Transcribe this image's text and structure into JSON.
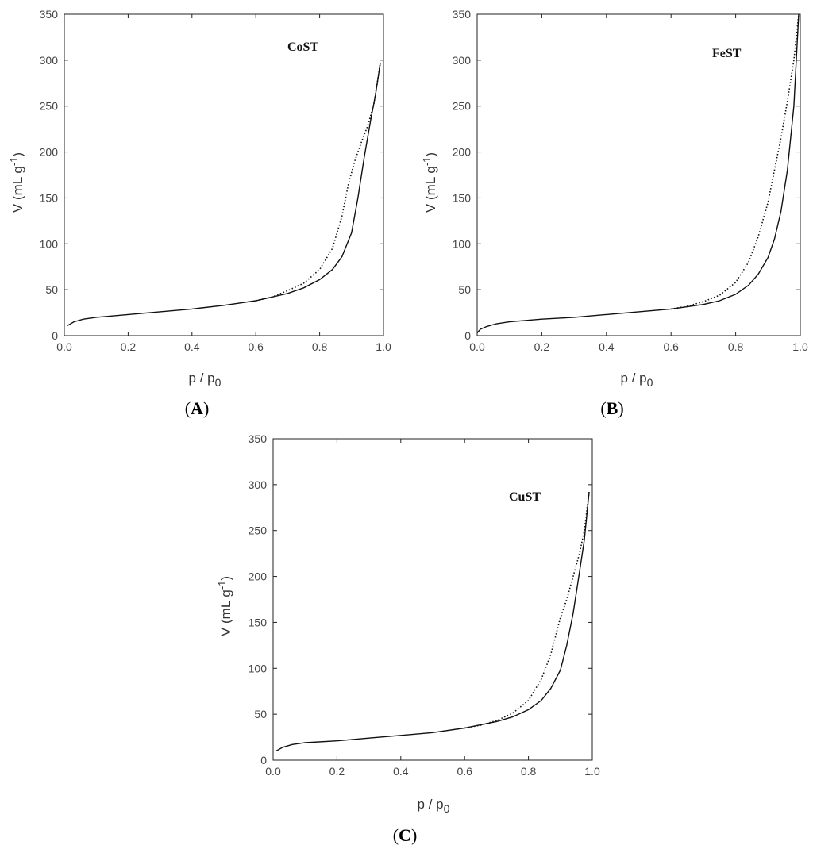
{
  "chart_data": [
    {
      "type": "line",
      "panel_label": "A",
      "title": "CoST",
      "xlabel_main": "p / p",
      "xlabel_sub": "0",
      "ylabel_main": "V (mL g",
      "ylabel_sup": "-1",
      "ylabel_close": ")",
      "xlim": [
        0,
        1.0
      ],
      "ylim": [
        0,
        350
      ],
      "xticks": [
        "0.0",
        "0.2",
        "0.4",
        "0.6",
        "0.8",
        "1.0"
      ],
      "yticks": [
        "0",
        "50",
        "100",
        "150",
        "200",
        "250",
        "300",
        "350"
      ],
      "series": [
        {
          "style": "solid",
          "x": [
            0.01,
            0.03,
            0.06,
            0.1,
            0.2,
            0.3,
            0.4,
            0.5,
            0.6,
            0.7,
            0.75,
            0.8,
            0.84,
            0.87,
            0.9,
            0.92,
            0.94,
            0.96,
            0.975,
            0.99
          ],
          "y": [
            11,
            15,
            18,
            20,
            23,
            26,
            29,
            33,
            38,
            46,
            52,
            61,
            72,
            86,
            112,
            150,
            195,
            235,
            262,
            297
          ]
        },
        {
          "style": "dotted",
          "x": [
            0.6,
            0.65,
            0.7,
            0.75,
            0.8,
            0.84,
            0.87,
            0.89,
            0.91,
            0.93,
            0.95,
            0.97,
            0.99
          ],
          "y": [
            38,
            42,
            49,
            57,
            72,
            95,
            130,
            165,
            190,
            210,
            228,
            252,
            297
          ]
        }
      ]
    },
    {
      "type": "line",
      "panel_label": "B",
      "title": "FeST",
      "xlabel_main": "p / p",
      "xlabel_sub": "0",
      "ylabel_main": "V (mL g",
      "ylabel_sup": "-1",
      "ylabel_close": ")",
      "xlim": [
        0,
        1.0
      ],
      "ylim": [
        0,
        350
      ],
      "xticks": [
        "0.0",
        "0.2",
        "0.4",
        "0.6",
        "0.8",
        "1.0"
      ],
      "yticks": [
        "0",
        "50",
        "100",
        "150",
        "200",
        "250",
        "300",
        "350"
      ],
      "series": [
        {
          "style": "solid",
          "x": [
            0.0,
            0.01,
            0.03,
            0.06,
            0.1,
            0.2,
            0.3,
            0.4,
            0.5,
            0.6,
            0.7,
            0.75,
            0.8,
            0.84,
            0.87,
            0.9,
            0.92,
            0.94,
            0.96,
            0.98,
            0.995
          ],
          "y": [
            3,
            7,
            10,
            13,
            15,
            18,
            20,
            23,
            26,
            29,
            34,
            38,
            45,
            55,
            67,
            85,
            105,
            135,
            180,
            250,
            350
          ]
        },
        {
          "style": "dotted",
          "x": [
            0.6,
            0.65,
            0.7,
            0.75,
            0.8,
            0.84,
            0.87,
            0.9,
            0.92,
            0.94,
            0.96,
            0.98,
            0.995
          ],
          "y": [
            29,
            32,
            37,
            44,
            58,
            80,
            108,
            145,
            180,
            215,
            255,
            300,
            350
          ]
        }
      ]
    },
    {
      "type": "line",
      "panel_label": "C",
      "title": "CuST",
      "xlabel_main": "p / p",
      "xlabel_sub": "0",
      "ylabel_main": "V (mL g",
      "ylabel_sup": "-1",
      "ylabel_close": ")",
      "xlim": [
        0,
        1.0
      ],
      "ylim": [
        0,
        350
      ],
      "xticks": [
        "0.0",
        "0.2",
        "0.4",
        "0.6",
        "0.8",
        "1.0"
      ],
      "yticks": [
        "0",
        "50",
        "100",
        "150",
        "200",
        "250",
        "300",
        "350"
      ],
      "series": [
        {
          "style": "solid",
          "x": [
            0.01,
            0.03,
            0.06,
            0.1,
            0.2,
            0.3,
            0.4,
            0.5,
            0.6,
            0.7,
            0.75,
            0.8,
            0.84,
            0.87,
            0.9,
            0.92,
            0.94,
            0.96,
            0.975,
            0.99
          ],
          "y": [
            10,
            14,
            17,
            19,
            21,
            24,
            27,
            30,
            35,
            42,
            47,
            55,
            65,
            78,
            98,
            125,
            160,
            205,
            240,
            292
          ]
        },
        {
          "style": "dotted",
          "x": [
            0.6,
            0.65,
            0.7,
            0.75,
            0.8,
            0.84,
            0.87,
            0.9,
            0.92,
            0.94,
            0.96,
            0.975,
            0.99
          ],
          "y": [
            35,
            38,
            43,
            51,
            65,
            88,
            115,
            155,
            175,
            200,
            225,
            250,
            292
          ]
        }
      ]
    }
  ]
}
